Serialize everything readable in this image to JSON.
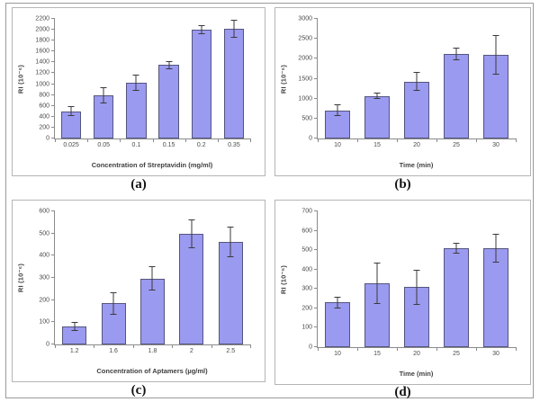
{
  "figure": {
    "background": "#ffffff",
    "outer_border_color": "#9a9a9a",
    "panel_border_color": "#b5b5b5",
    "axis_color": "#8a8a8a",
    "text_color": "#3f3f3f",
    "bar_fill": "#9a9af0",
    "bar_border": "#55557e",
    "error_color": "#3a3a3a"
  },
  "chart_data": [
    {
      "type": "bar",
      "caption": "(a)",
      "title": "",
      "xlabel": "Concentration of Streptavidin (mg/ml)",
      "ylabel": "RI (10⁻⁶)",
      "ylim": [
        0,
        2200
      ],
      "ystep": 200,
      "yticks": [
        "0",
        "200",
        "400",
        "600",
        "800",
        "1000",
        "1200",
        "1400",
        "1600",
        "1800",
        "2000",
        "2200"
      ],
      "categories": [
        "0.025",
        "0.05",
        "0.1",
        "0.15",
        "0.2",
        "0.35"
      ],
      "values": [
        500,
        800,
        1020,
        1350,
        2000,
        2020
      ],
      "errors": [
        90,
        150,
        150,
        70,
        80,
        170
      ],
      "grid": false,
      "legend": null
    },
    {
      "type": "bar",
      "caption": "(b)",
      "title": "",
      "xlabel": "Time (min)",
      "ylabel": "RI (10⁻⁶)",
      "ylim": [
        0,
        3000
      ],
      "ystep": 500,
      "yticks": [
        "0",
        "500",
        "1000",
        "1500",
        "2000",
        "2500",
        "3000"
      ],
      "categories": [
        "10",
        "15",
        "20",
        "25",
        "30"
      ],
      "values": [
        710,
        1070,
        1430,
        2130,
        2100
      ],
      "errors": [
        150,
        85,
        230,
        160,
        500
      ],
      "grid": false,
      "legend": null
    },
    {
      "type": "bar",
      "caption": "(c)",
      "title": "",
      "xlabel": "Concentration of Aptamers (µg/ml)",
      "ylabel": "RI (10⁻⁶)",
      "ylim": [
        0,
        600
      ],
      "ystep": 100,
      "yticks": [
        "0",
        "100",
        "200",
        "300",
        "400",
        "500",
        "600"
      ],
      "categories": [
        "1.2",
        "1.6",
        "1.8",
        "2",
        "2.5"
      ],
      "values": [
        80,
        185,
        298,
        497,
        462
      ],
      "errors": [
        20,
        50,
        55,
        65,
        70
      ],
      "grid": false,
      "legend": null
    },
    {
      "type": "bar",
      "caption": "(d)",
      "title": "",
      "xlabel": "Time (min)",
      "ylabel": "RI (10⁻⁶)",
      "ylim": [
        0,
        700
      ],
      "ystep": 100,
      "yticks": [
        "0",
        "100",
        "200",
        "300",
        "400",
        "500",
        "600",
        "700"
      ],
      "categories": [
        "10",
        "15",
        "20",
        "25",
        "30"
      ],
      "values": [
        230,
        330,
        310,
        510,
        510
      ],
      "errors": [
        30,
        108,
        90,
        30,
        73
      ],
      "grid": false,
      "legend": null
    }
  ]
}
